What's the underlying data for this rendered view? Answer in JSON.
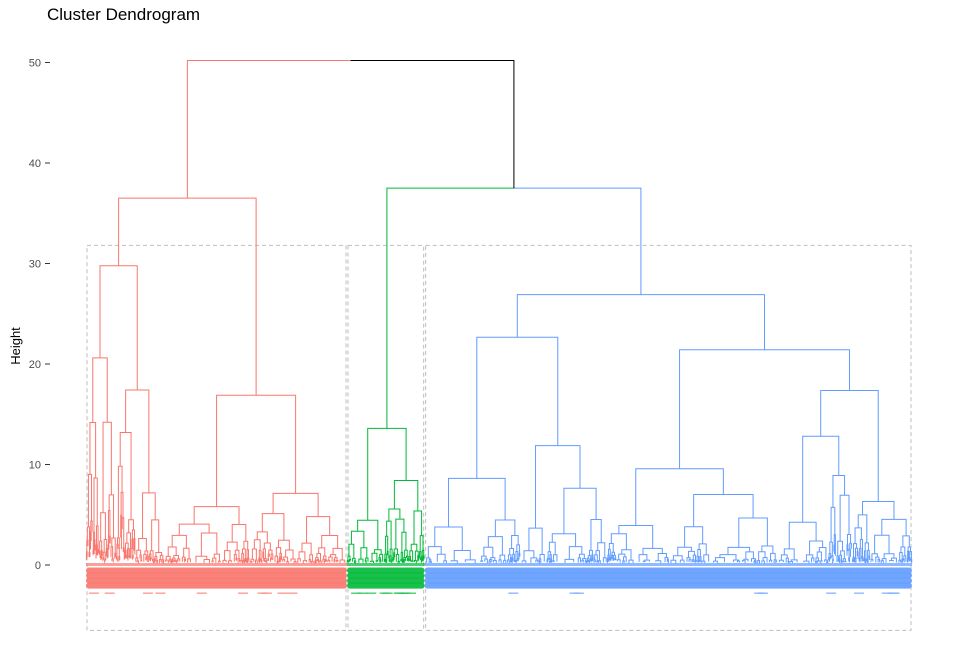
{
  "chart_data": {
    "type": "dendrogram",
    "title": "Cluster Dendrogram",
    "xlabel": "",
    "ylabel": "Height",
    "ylim": [
      -6.5,
      51.5
    ],
    "yticks": [
      0,
      10,
      20,
      30,
      40,
      50
    ],
    "ytick_labels": [
      "0",
      "10",
      "20",
      "30",
      "40",
      "50"
    ],
    "root_height": 50.2,
    "clusters": [
      {
        "id": "red",
        "color": "#F8766D",
        "leaf_share": 0.316,
        "merge_height": 36.5
      },
      {
        "id": "green",
        "color": "#00BA38",
        "leaf_share": 0.094,
        "merge_height": 13.6
      },
      {
        "id": "blue",
        "color": "#619CFF",
        "leaf_share": 0.59,
        "merge_height": 26.9
      }
    ],
    "merges": [
      {
        "members": [
          "red",
          "green+blue"
        ],
        "height": 50.2,
        "color": "#F8766D / #000000"
      },
      {
        "members": [
          "green",
          "blue"
        ],
        "height": 37.5,
        "color": "#000000"
      }
    ],
    "subtree_merge_heights": {
      "red": [
        36.5,
        21.6,
        24.9,
        12.3,
        17.8,
        15.4,
        14.8,
        16.0,
        11.9,
        10.7,
        10.0,
        7.4,
        11.3
      ],
      "green": [
        13.6,
        9.4,
        11.5,
        7.7,
        5.7
      ],
      "blue": [
        26.9,
        21.6,
        17.8,
        12.6,
        12.2,
        11.3,
        10.1,
        9.2,
        8.2,
        8.1,
        6.8,
        6.7,
        6.3,
        5.9
      ]
    },
    "cluster_rectangles": {
      "color": "#BEBEBE",
      "style": "dashed",
      "top": 31.8,
      "bottom": -6.5
    },
    "leaf_labels_visible": false,
    "grid": false,
    "legend": "none"
  }
}
